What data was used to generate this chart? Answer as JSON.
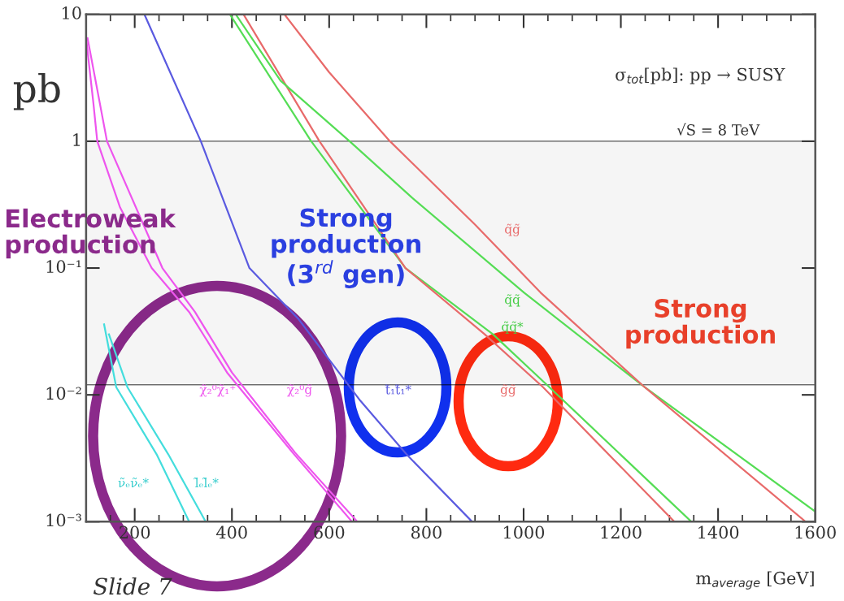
{
  "chart_data": {
    "type": "line",
    "xlabel": "m$_{average}$ [GeV]",
    "ylabel": "pb",
    "log": "y",
    "xlim": [
      100,
      1600
    ],
    "xticks": [
      200,
      400,
      600,
      800,
      1000,
      1200,
      1400,
      1600
    ],
    "ylim": [
      0.001,
      10
    ],
    "yticks": [
      {
        "value": 0.001,
        "label": "10⁻³"
      },
      {
        "value": 0.01,
        "label": "10⁻²"
      },
      {
        "value": 0.1,
        "label": "10⁻¹"
      },
      {
        "value": 1,
        "label": "1"
      },
      {
        "value": 10,
        "label": "10"
      }
    ],
    "grid": false,
    "series": [
      {
        "color": "#ee55ee",
        "x": [
          100,
          115,
          123,
          170,
          235,
          312,
          390,
          525,
          647
        ],
        "values": [
          6.5,
          2,
          1,
          0.3,
          0.1,
          0.045,
          0.015,
          0.0035,
          0.001
        ]
      },
      {
        "color": "#ee55ee",
        "x": [
          103,
          143,
          257,
          324,
          400,
          530,
          658
        ],
        "values": [
          6.5,
          1,
          0.1,
          0.045,
          0.015,
          0.0035,
          0.001
        ]
      },
      {
        "color": "#44dddd",
        "x": [
          137,
          162,
          245,
          312
        ],
        "values": [
          0.036,
          0.0115,
          0.0034,
          0.001
        ]
      },
      {
        "color": "#44dddd",
        "x": [
          147,
          185,
          269,
          346
        ],
        "values": [
          0.03,
          0.0115,
          0.0034,
          0.001
        ]
      },
      {
        "color": "#5a5ae0",
        "x": [
          220,
          336,
          436,
          536,
          664,
          759,
          894
        ],
        "values": [
          10,
          1,
          0.1,
          0.04,
          0.009,
          0.0034,
          0.001
        ]
      },
      {
        "color": "#55dd55",
        "x": [
          396,
          563,
          757,
          937,
          1053,
          1345
        ],
        "values": [
          10,
          1,
          0.1,
          0.03,
          0.0115,
          0.001
        ]
      },
      {
        "color": "#e86a6a",
        "x": [
          424,
          580,
          757,
          920,
          1040,
          1310
        ],
        "values": [
          10,
          1,
          0.1,
          0.03,
          0.0115,
          0.001
        ]
      },
      {
        "color": "#55dd55",
        "x": [
          408,
          500,
          642,
          770,
          1001,
          1249,
          1600
        ],
        "values": [
          10,
          3,
          1,
          0.36,
          0.064,
          0.0115,
          0.0012
        ]
      },
      {
        "color": "#e86a6a",
        "x": [
          508,
          600,
          725,
          900,
          1035,
          1249,
          1580
        ],
        "values": [
          10,
          3.5,
          1,
          0.22,
          0.064,
          0.0115,
          0.001
        ]
      }
    ],
    "bands": [
      {
        "axis": "y",
        "from": 0.012,
        "to": 1,
        "color": "#000000"
      }
    ],
    "annotations": [
      "σ$_{tot}$[pb]: pp → SUSY",
      "√S = 8 TeV",
      "Electroweak\nproduction",
      "Strong\nproduction\n(3$^{rd}$ gen)",
      "Strong\nproduction",
      "Slide 7",
      "χ̃₂⁰χ̃₁⁺",
      "χ̃₂⁰g̃",
      "t̃₁t̃₁*",
      "g̃g̃",
      "q̃g̃",
      "q̃q̃",
      "q̃q̃*",
      "ν̃ₑν̃ₑ*",
      "l̃ₑl̃ₑ*"
    ]
  }
}
